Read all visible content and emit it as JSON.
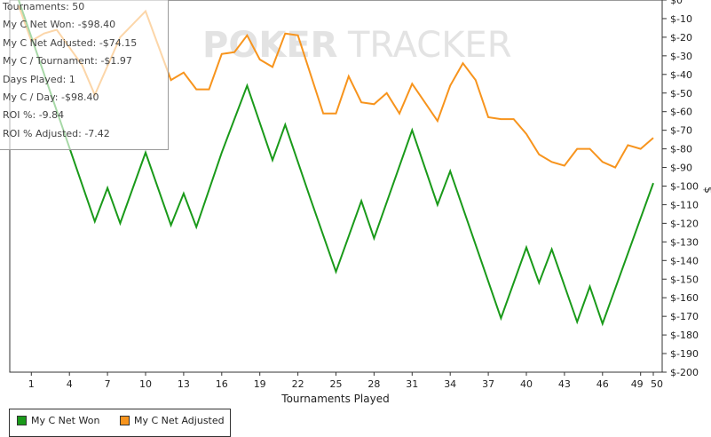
{
  "watermark": {
    "left": "POKER",
    "right": "TRACKER"
  },
  "stats": [
    "Tournaments: 50",
    "My C Net Won: -$98.40",
    "My C Net Adjusted: -$74.15",
    "My C / Tournament: -$1.97",
    "Days Played: 1",
    "My C / Day: -$98.40",
    "ROI %: -9.84",
    "ROI % Adjusted: -7.42"
  ],
  "legend": [
    {
      "label": "My C Net Won",
      "color": "#1a9a1a"
    },
    {
      "label": "My C Net Adjusted",
      "color": "#f7941d"
    }
  ],
  "chart_data": {
    "type": "line",
    "xlabel": "Tournaments Played",
    "ylabel": "$",
    "xlim": [
      0,
      50
    ],
    "ylim": [
      -200,
      0
    ],
    "x_ticks": [
      1,
      4,
      7,
      10,
      13,
      16,
      19,
      22,
      25,
      28,
      31,
      34,
      37,
      40,
      43,
      46,
      49,
      50
    ],
    "x_tick_labels": [
      "1",
      "4",
      "7",
      "10",
      "13",
      "16",
      "19",
      "22",
      "25",
      "28",
      "31",
      "34",
      "37",
      "40",
      "43",
      "46",
      "49",
      "50"
    ],
    "y_ticks": [
      0,
      -10,
      -20,
      -30,
      -40,
      -50,
      -60,
      -70,
      -80,
      -90,
      -100,
      -110,
      -120,
      -130,
      -140,
      -150,
      -160,
      -170,
      -180,
      -190,
      -200
    ],
    "y_tick_labels": [
      "$0",
      "$-10",
      "$-20",
      "$-30",
      "$-40",
      "$-50",
      "$-60",
      "$-70",
      "$-80",
      "$-90",
      "$-100",
      "$-110",
      "$-120",
      "$-130",
      "$-140",
      "$-150",
      "$-160",
      "$-170",
      "$-180",
      "$-190",
      "$-200"
    ],
    "y_axis_side": "right",
    "grid": false,
    "legend_position": "bottom-left",
    "series": [
      {
        "name": "My C Net Won",
        "color": "#1a9a1a",
        "x": [
          0,
          6,
          7,
          8,
          10,
          12,
          13,
          14,
          16,
          18,
          20,
          21,
          23,
          25,
          27,
          28,
          31,
          33,
          34,
          38,
          40,
          41,
          42,
          44,
          45,
          46,
          50
        ],
        "y": [
          0,
          -119,
          -101,
          -120,
          -82,
          -121,
          -104,
          -122,
          -82,
          -46,
          -86,
          -67,
          -107,
          -146,
          -108,
          -128,
          -70,
          -110,
          -92,
          -171,
          -133,
          -152,
          -134,
          -173,
          -154,
          -174,
          -98.4
        ]
      },
      {
        "name": "My C Net Adjusted",
        "color": "#f7941d",
        "x": [
          0,
          1,
          2,
          3,
          5,
          6,
          8,
          10,
          12,
          13,
          14,
          15,
          16,
          17,
          18,
          19,
          20,
          21,
          22,
          23,
          24,
          25,
          26,
          27,
          28,
          29,
          30,
          31,
          32,
          33,
          34,
          35,
          36,
          37,
          38,
          39,
          40,
          41,
          42,
          43,
          44,
          45,
          46,
          47,
          48,
          49,
          50
        ],
        "y": [
          -3,
          -22,
          -18,
          -16,
          -35,
          -51,
          -20,
          -6,
          -43,
          -39,
          -48,
          -48,
          -29,
          -28,
          -19,
          -32,
          -36,
          -18,
          -19,
          -40,
          -61,
          -61,
          -41,
          -55,
          -56,
          -50,
          -61,
          -45,
          -55,
          -65,
          -46,
          -34,
          -43,
          -63,
          -64,
          -64,
          -72,
          -83,
          -87,
          -89,
          -80,
          -80,
          -87,
          -90,
          -78,
          -80,
          -74.15
        ]
      }
    ]
  }
}
